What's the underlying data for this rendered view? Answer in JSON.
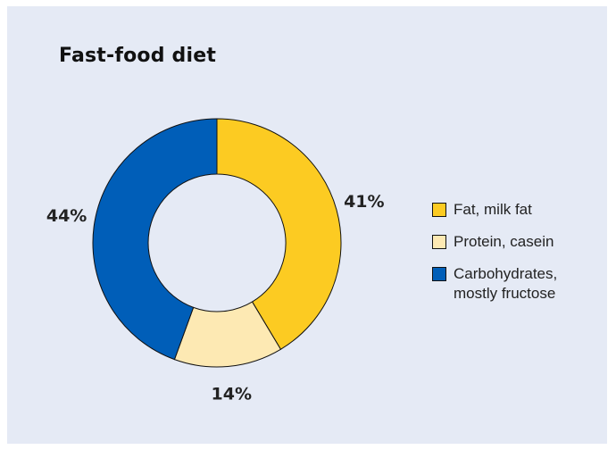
{
  "chart_data": {
    "type": "pie",
    "title": "Fast-food diet",
    "categories": [
      "Fat, milk fat",
      "Protein, casein",
      "Carbohydrates,\nmostly fructose"
    ],
    "values": [
      41,
      14,
      44
    ],
    "value_labels": [
      "41%",
      "14%",
      "44%"
    ],
    "colors": [
      "#fccb22",
      "#fde9b3",
      "#005eb8"
    ],
    "legend_position": "right",
    "donut": true
  }
}
